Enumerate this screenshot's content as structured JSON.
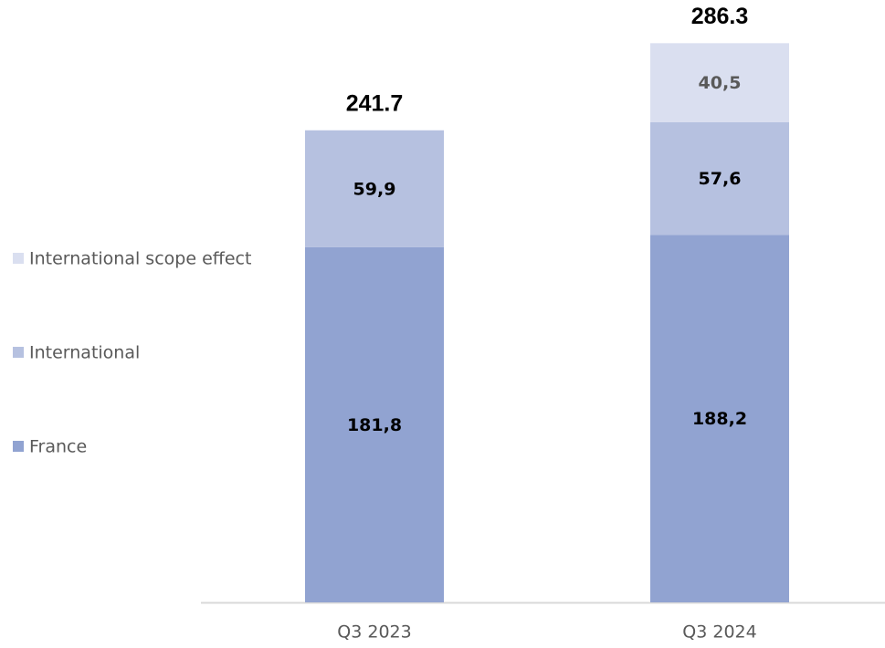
{
  "chart_data": {
    "type": "stacked_bar",
    "categories": [
      "Q3 2023",
      "Q3 2024"
    ],
    "series": [
      {
        "name": "France",
        "color": "#91a3d1",
        "label_color": "#000000",
        "values": [
          181.8,
          188.2
        ],
        "value_labels": [
          "181,8",
          "188,2"
        ]
      },
      {
        "name": "International",
        "color": "#b6c1e0",
        "label_color": "#000000",
        "values": [
          59.9,
          57.6
        ],
        "value_labels": [
          "59,9",
          "57,6"
        ]
      },
      {
        "name": "International scope effect",
        "color": "#dadff0",
        "label_color": "#595959",
        "values": [
          null,
          40.5
        ],
        "value_labels": [
          null,
          "40,5"
        ]
      }
    ],
    "totals": [
      241.7,
      286.3
    ],
    "ylim": [
      0,
      300
    ],
    "legend": "left"
  }
}
